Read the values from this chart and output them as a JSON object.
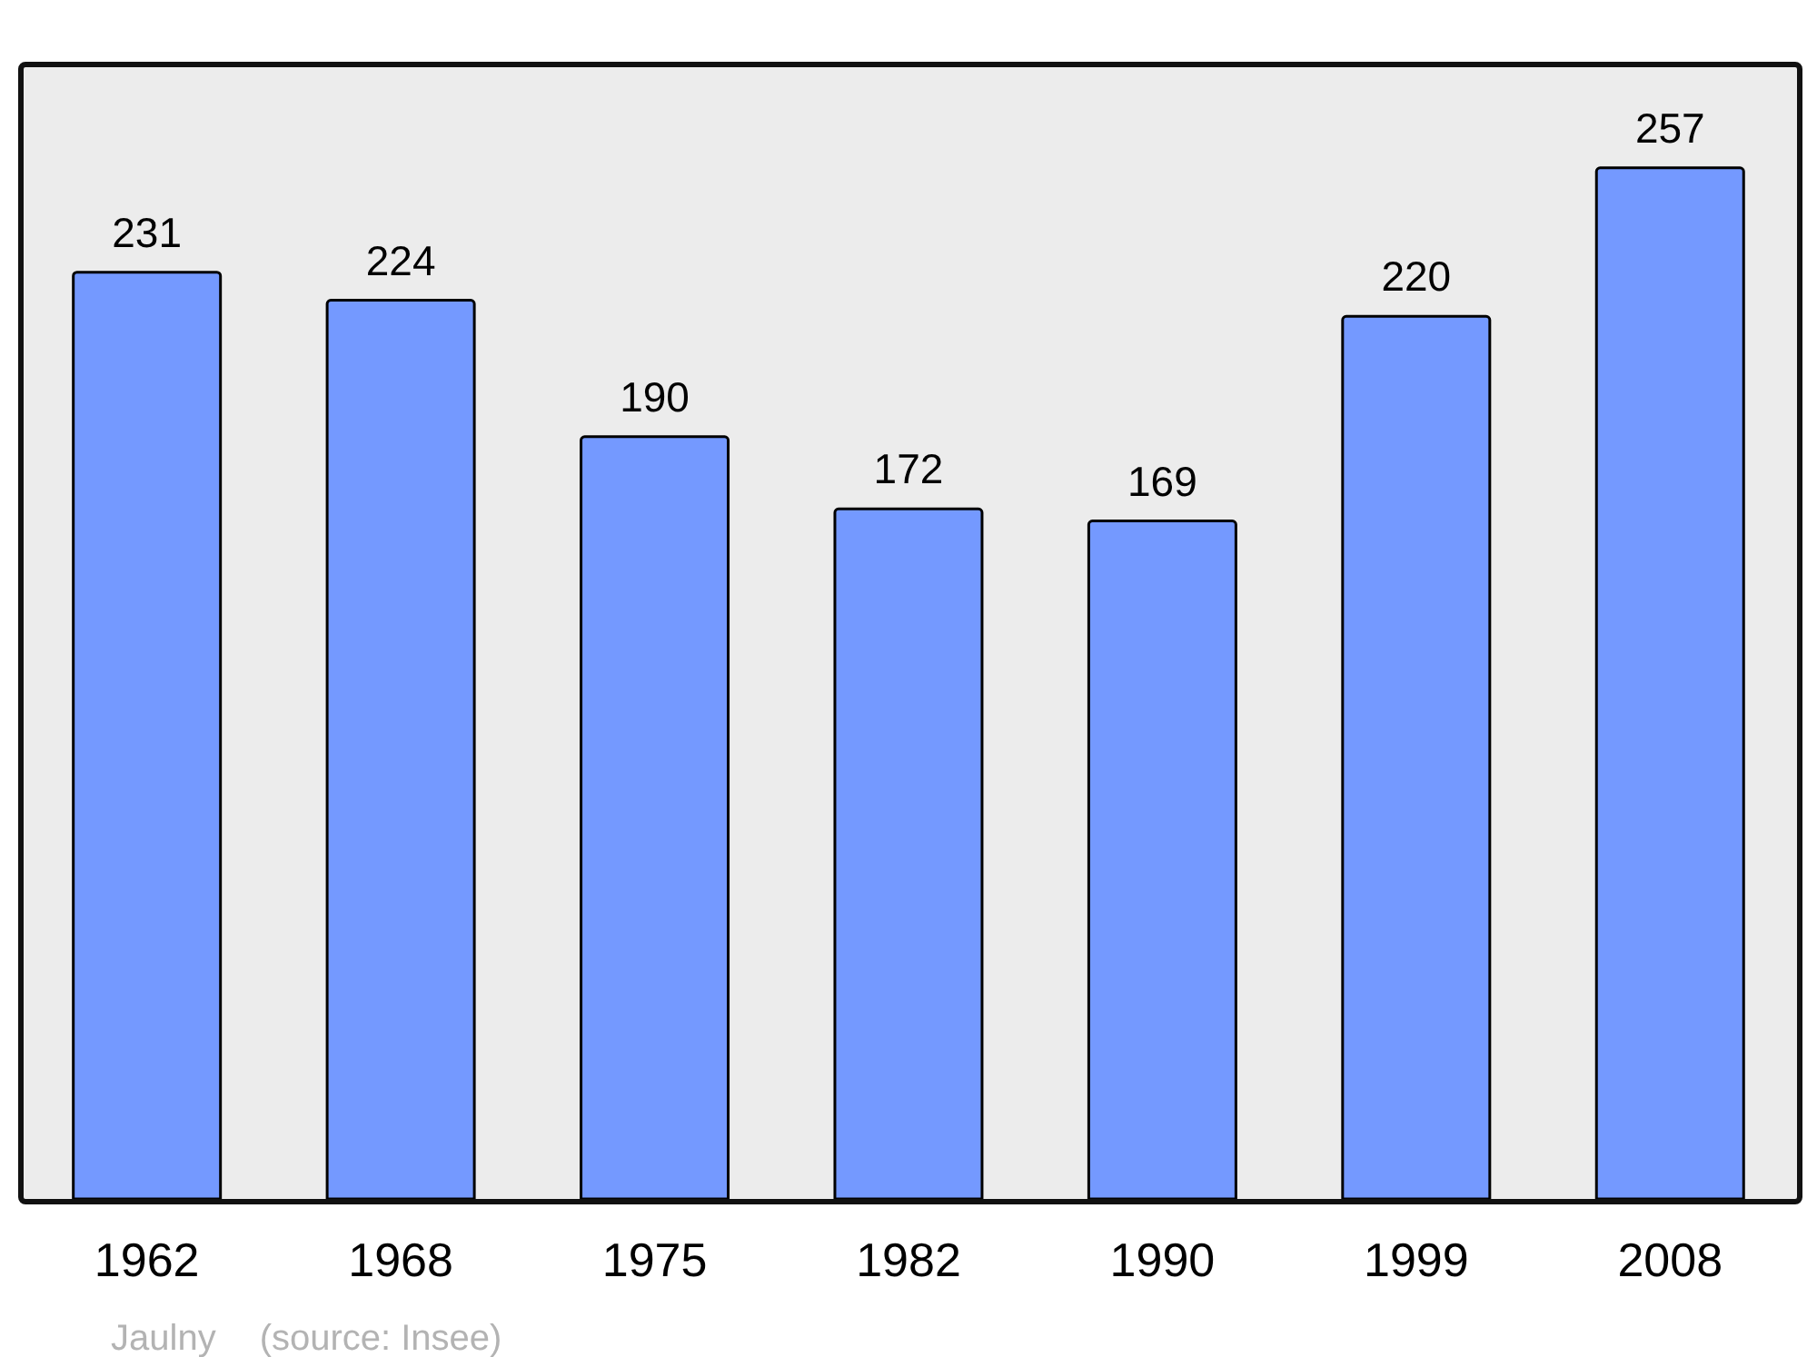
{
  "chart_data": {
    "type": "bar",
    "categories": [
      "1962",
      "1968",
      "1975",
      "1982",
      "1990",
      "1999",
      "2008"
    ],
    "values": [
      231,
      224,
      190,
      172,
      169,
      220,
      257
    ],
    "color": "#7499ff",
    "ylim": [
      0,
      283
    ],
    "data_labels": true,
    "annotations": [
      "Jaulny",
      "(source: Insee)"
    ]
  }
}
